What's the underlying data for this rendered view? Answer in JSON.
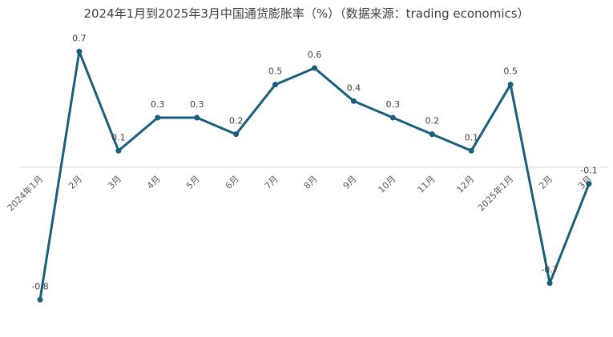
{
  "chart_data": {
    "type": "line",
    "title": "2024年1月到2025年3月中国通货膨胀率（%）（数据来源：trading economics）",
    "xlabel": "",
    "ylabel": "",
    "categories": [
      "2024年1月",
      "2月",
      "3月",
      "4月",
      "5月",
      "6月",
      "7月",
      "8月",
      "9月",
      "10月",
      "11月",
      "12月",
      "2025年1月",
      "2月",
      "3月"
    ],
    "series": [
      {
        "values": [
          -0.8,
          0.7,
          0.1,
          0.3,
          0.3,
          0.2,
          0.5,
          0.6,
          0.4,
          0.3,
          0.2,
          0.1,
          0.5,
          -0.7,
          -0.1
        ],
        "data_labels": [
          "-0.8",
          "0.7",
          "0.1",
          "0.3",
          "0.3",
          "0.2",
          "0.5",
          "0.6",
          "0.4",
          "0.3",
          "0.2",
          "0.1",
          "0.5",
          "-0.7",
          "-0.1"
        ],
        "color": "#1a5e7e"
      }
    ],
    "ylim": [
      -0.8,
      0.7
    ],
    "grid": false,
    "legend": "none",
    "colors": {
      "line": "#1a5e7e",
      "axis": "#d9d9d9",
      "text": "#404040"
    }
  }
}
